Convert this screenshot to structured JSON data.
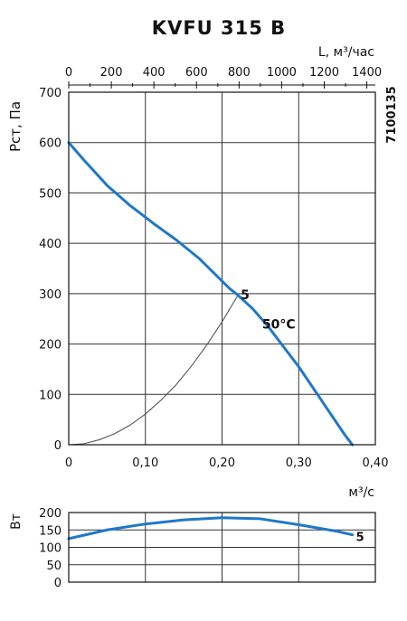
{
  "chart_data": [
    {
      "type": "line",
      "title": "KVFU 315 B",
      "code": "7100135",
      "ylabel": "Pст, Па",
      "xlabel": "м³/с",
      "top_axis_label": "L, м³/час",
      "xlim": [
        0,
        0.4
      ],
      "ylim": [
        0,
        700
      ],
      "x_ticks": [
        "0",
        "0,10",
        "0,20",
        "0,30",
        "0,40"
      ],
      "y_ticks": [
        "0",
        "100",
        "200",
        "300",
        "400",
        "500",
        "600",
        "700"
      ],
      "top_ticks": [
        "0",
        "200",
        "400",
        "600",
        "800",
        "1000",
        "1200",
        "1400"
      ],
      "top_lim": [
        0,
        1440
      ],
      "grid": true,
      "series": [
        {
          "name": "5",
          "color": "#1f78c8",
          "points": [
            [
              0,
              600
            ],
            [
              0.02,
              565
            ],
            [
              0.05,
              515
            ],
            [
              0.08,
              475
            ],
            [
              0.11,
              440
            ],
            [
              0.14,
              407
            ],
            [
              0.17,
              370
            ],
            [
              0.19,
              340
            ],
            [
              0.21,
              310
            ],
            [
              0.22,
              298
            ],
            [
              0.24,
              270
            ],
            [
              0.26,
              235
            ],
            [
              0.28,
              195
            ],
            [
              0.3,
              155
            ],
            [
              0.32,
              110
            ],
            [
              0.34,
              65
            ],
            [
              0.36,
              20
            ],
            [
              0.37,
              0
            ]
          ]
        }
      ],
      "system_curve": {
        "color": "#555555",
        "points": [
          [
            0,
            0
          ],
          [
            0.02,
            2
          ],
          [
            0.04,
            10
          ],
          [
            0.06,
            22
          ],
          [
            0.08,
            39
          ],
          [
            0.1,
            61
          ],
          [
            0.12,
            88
          ],
          [
            0.14,
            119
          ],
          [
            0.16,
            156
          ],
          [
            0.18,
            198
          ],
          [
            0.2,
            244
          ],
          [
            0.22,
            295
          ]
        ]
      },
      "annotations": [
        {
          "text": "5",
          "x": 0.222,
          "y": 298
        },
        {
          "text": "50°C",
          "x": 0.25,
          "y": 240
        }
      ]
    },
    {
      "type": "line",
      "ylabel": "Вт",
      "xlim": [
        0,
        0.4
      ],
      "ylim": [
        0,
        200
      ],
      "y_ticks": [
        "0",
        "50",
        "100",
        "150",
        "200"
      ],
      "grid": true,
      "series": [
        {
          "name": "5",
          "color": "#1f78c8",
          "points": [
            [
              0,
              125
            ],
            [
              0.05,
              150
            ],
            [
              0.1,
              167
            ],
            [
              0.15,
              179
            ],
            [
              0.2,
              185
            ],
            [
              0.25,
              182
            ],
            [
              0.3,
              165
            ],
            [
              0.35,
              146
            ],
            [
              0.37,
              136
            ]
          ]
        }
      ]
    }
  ]
}
